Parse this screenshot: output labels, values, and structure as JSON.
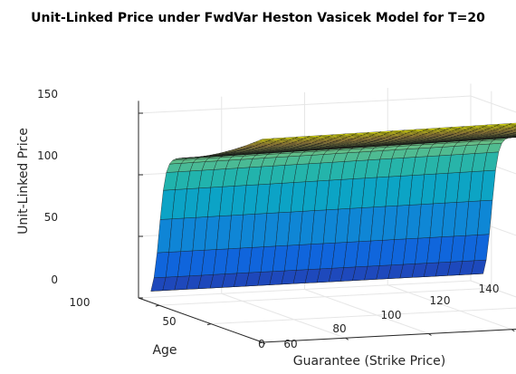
{
  "chart_data": {
    "type": "surface",
    "title": "Unit-Linked Price under FwdVar Heston Vasicek Model for T=20",
    "xlabel": "Guarantee (Strike Price)",
    "ylabel": "Age",
    "zlabel": "Unit-Linked Price",
    "x_ticks": [
      "60",
      "80",
      "100",
      "120",
      "140"
    ],
    "y_ticks": [
      "0",
      "50",
      "100"
    ],
    "z_ticks": [
      "0",
      "50",
      "100",
      "150"
    ],
    "xlim": [
      60,
      140
    ],
    "ylim": [
      0,
      120
    ],
    "zlim": [
      0,
      160
    ],
    "colormap": "parula",
    "grid": true,
    "surface_summary": {
      "description_points": [
        {
          "guarantee": 60,
          "age": 0,
          "price": 163
        },
        {
          "guarantee": 60,
          "age": 70,
          "price": 120
        },
        {
          "guarantee": 60,
          "age": 110,
          "price": 0
        },
        {
          "guarantee": 140,
          "age": 0,
          "price": 165
        },
        {
          "guarantee": 140,
          "age": 70,
          "price": 125
        },
        {
          "guarantee": 140,
          "age": 110,
          "price": 0
        }
      ]
    }
  }
}
